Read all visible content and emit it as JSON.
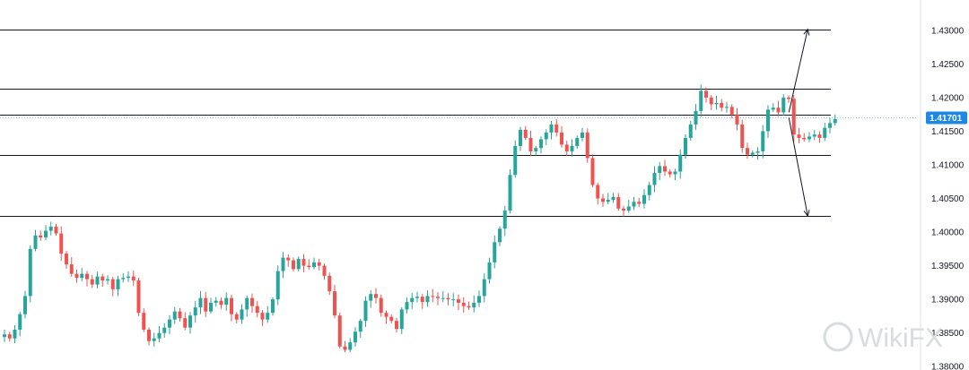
{
  "chart_data": {
    "type": "candlestick",
    "y_axis": {
      "side": "right",
      "range": [
        1.3795,
        1.4345
      ],
      "ticks": [
        "1.43000",
        "1.42500",
        "1.42000",
        "1.41500",
        "1.41000",
        "1.40500",
        "1.40000",
        "1.39500",
        "1.39000",
        "1.38500",
        "1.38000"
      ],
      "tick_values": [
        1.43,
        1.425,
        1.42,
        1.415,
        1.41,
        1.405,
        1.4,
        1.395,
        1.39,
        1.385,
        1.38
      ]
    },
    "current_price": {
      "value": 1.41701,
      "label": "1.41701",
      "color": "#1e88e5"
    },
    "colors": {
      "up": "#26a69a",
      "down": "#ef5350",
      "level_line": "#131722",
      "arrow": "#131722"
    },
    "horizontal_levels": [
      1.43015,
      1.4213,
      1.41745,
      1.4114,
      1.4024
    ],
    "projection_arrows": [
      {
        "from_index": 151,
        "from_price": 1.4178,
        "to_index": 155,
        "to_price": 1.43015
      },
      {
        "from_index": 151,
        "from_price": 1.417,
        "to_index": 155,
        "to_price": 1.4024
      }
    ],
    "candles_close": [
      1.3848,
      1.3842,
      1.3855,
      1.3878,
      1.3905,
      1.3975,
      1.3995,
      1.3992,
      1.4002,
      1.4008,
      1.3998,
      1.3968,
      1.3952,
      1.3938,
      1.3932,
      1.3938,
      1.393,
      1.3922,
      1.3934,
      1.3928,
      1.393,
      1.3915,
      1.393,
      1.3932,
      1.3934,
      1.3928,
      1.388,
      1.3855,
      1.3838,
      1.3842,
      1.385,
      1.3858,
      1.387,
      1.3882,
      1.3872,
      1.3858,
      1.3876,
      1.3888,
      1.3902,
      1.3882,
      1.3895,
      1.3898,
      1.3892,
      1.3902,
      1.3878,
      1.387,
      1.3885,
      1.3902,
      1.389,
      1.388,
      1.387,
      1.388,
      1.39,
      1.3942,
      1.3962,
      1.3958,
      1.3945,
      1.396,
      1.395,
      1.3948,
      1.3955,
      1.395,
      1.3935,
      1.3912,
      1.3876,
      1.383,
      1.3825,
      1.3836,
      1.3852,
      1.3868,
      1.3898,
      1.3908,
      1.3902,
      1.388,
      1.3874,
      1.3868,
      1.3856,
      1.3885,
      1.3896,
      1.3902,
      1.3904,
      1.3896,
      1.3905,
      1.3904,
      1.3902,
      1.3902,
      1.39,
      1.39,
      1.3895,
      1.389,
      1.3888,
      1.3895,
      1.3905,
      1.393,
      1.3955,
      1.3985,
      1.4005,
      1.4032,
      1.4085,
      1.4128,
      1.4152,
      1.414,
      1.412,
      1.4125,
      1.4138,
      1.4148,
      1.416,
      1.4148,
      1.413,
      1.412,
      1.4128,
      1.414,
      1.4148,
      1.411,
      1.407,
      1.405,
      1.4045,
      1.4048,
      1.4052,
      1.4035,
      1.4032,
      1.4038,
      1.4045,
      1.4042,
      1.4055,
      1.407,
      1.4088,
      1.4098,
      1.409,
      1.4086,
      1.409,
      1.4115,
      1.414,
      1.416,
      1.418,
      1.421,
      1.42,
      1.419,
      1.4192,
      1.4185,
      1.4186,
      1.4175,
      1.416,
      1.4125,
      1.4115,
      1.4118,
      1.412,
      1.415,
      1.4182,
      1.4185,
      1.4178,
      1.42,
      1.4198,
      1.4145,
      1.414,
      1.4138,
      1.4142,
      1.4145,
      1.414,
      1.4155,
      1.4162,
      1.4168
    ]
  },
  "watermark": {
    "text": "WikiFX"
  }
}
